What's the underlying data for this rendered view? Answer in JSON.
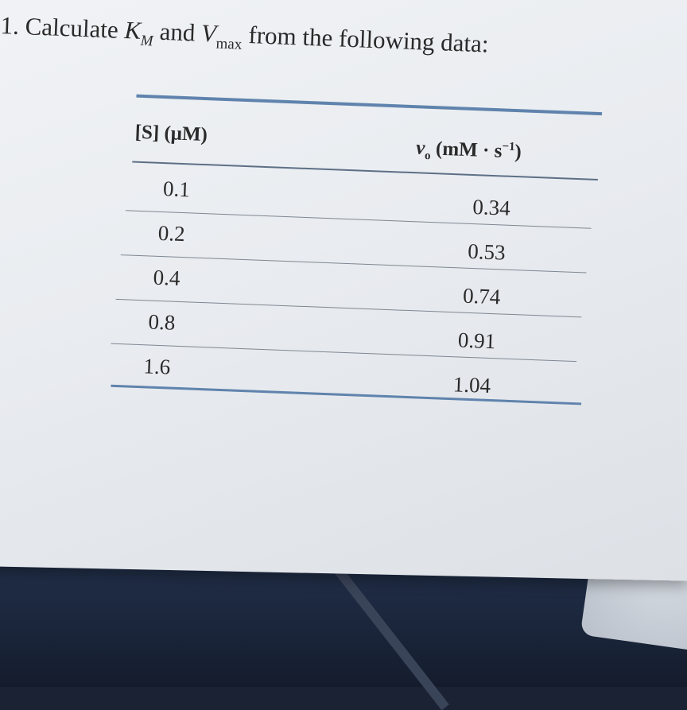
{
  "question": {
    "number": "1.",
    "text_before": "Calculate",
    "k_symbol": "K",
    "k_subscript": "M",
    "conjunction": "and",
    "v_symbol": "V",
    "v_subscript": "max",
    "text_after": "from the following data:"
  },
  "table": {
    "headers": {
      "substrate": "[S] (μM)",
      "velocity_symbol": "v",
      "velocity_subscript": "o",
      "velocity_units_prefix": "(mM · s",
      "velocity_units_exponent": "−1",
      "velocity_units_suffix": ")"
    },
    "rows": [
      {
        "s": "0.1",
        "v": "0.34"
      },
      {
        "s": "0.2",
        "v": "0.53"
      },
      {
        "s": "0.4",
        "v": "0.74"
      },
      {
        "s": "0.8",
        "v": "0.91"
      },
      {
        "s": "1.6",
        "v": "1.04"
      }
    ]
  },
  "colors": {
    "rule_accent": "#5f83ad",
    "paper": "#eceff3",
    "desk": "#1a253a"
  }
}
